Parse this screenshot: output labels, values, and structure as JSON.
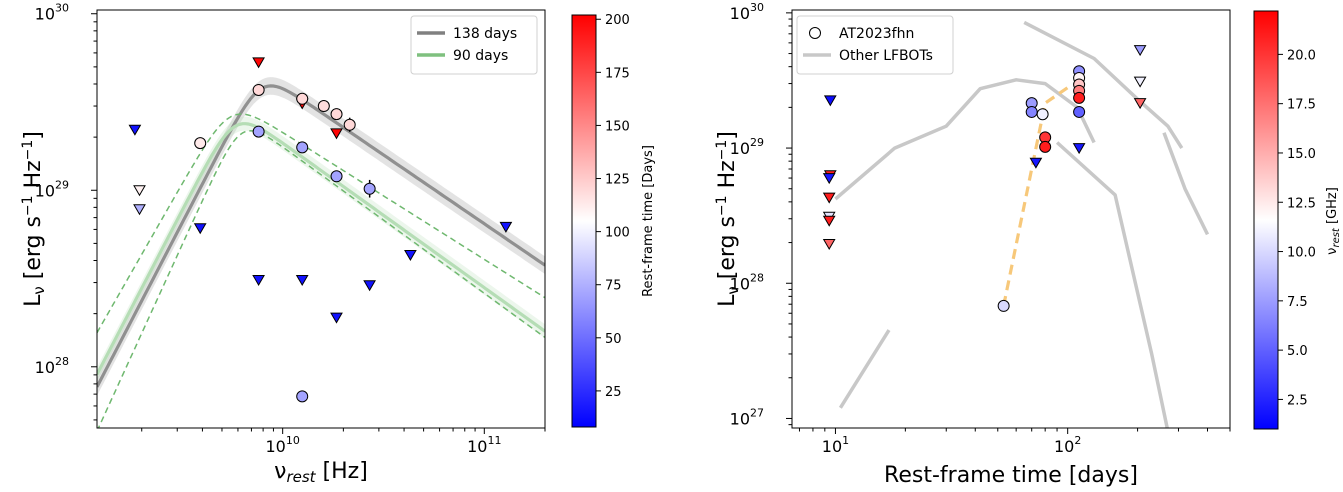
{
  "chart_data": [
    {
      "type": "scatter",
      "xscale": "log",
      "yscale": "log",
      "xlim": [
        1200000000.0,
        200000000000.0
      ],
      "ylim": [
        4.5e+27,
        1.05e+30
      ],
      "xlabel": "ν_rest [Hz]",
      "ylabel": "Lν [erg s⁻¹ Hz⁻¹]",
      "xticks": [
        {
          "value": 10000000000.0,
          "label": "10",
          "exp": "10"
        },
        {
          "value": 100000000000.0,
          "label": "10",
          "exp": "11"
        }
      ],
      "yticks": [
        {
          "value": 1e+28,
          "label": "10",
          "exp": "28"
        },
        {
          "value": 1e+29,
          "label": "10",
          "exp": "29"
        },
        {
          "value": 1e+30,
          "label": "10",
          "exp": "30"
        }
      ],
      "legend": {
        "position": "top-right",
        "entries": [
          {
            "label": "138 days",
            "color": "#808080"
          },
          {
            "label": "90 days",
            "color": "#7fc07f"
          }
        ]
      },
      "colorbar": {
        "label": "Rest-frame time [Days]",
        "range": [
          8,
          202
        ],
        "ticks": [
          25,
          50,
          75,
          100,
          125,
          150,
          175,
          200
        ],
        "tick_labels": [
          "25",
          "50",
          "75",
          "100",
          "125",
          "150",
          "175",
          "200"
        ]
      },
      "model_curves": [
        {
          "name": "138 days",
          "color": "#909090",
          "peak_nu": 7800000000.0,
          "peak_L": 3.75e+29,
          "low_index": 2.2,
          "high_index": -0.78,
          "band_dex": 0.05
        },
        {
          "name": "90 days",
          "color": "#b5ddb5",
          "peak_nu": 5800000000.0,
          "peak_L": 2.3e+29,
          "low_index": 2.2,
          "high_index": -0.82,
          "band_dex": 0.04
        },
        {
          "name": "90 days upper",
          "color": "#6fb86f",
          "dashed": true,
          "peak_nu": 5500000000.0,
          "peak_L": 2.6e+29,
          "low_index": 2.0,
          "high_index": -0.72
        },
        {
          "name": "90 days lower",
          "color": "#6fb86f",
          "dashed": true,
          "peak_nu": 6200000000.0,
          "peak_L": 2.08e+29,
          "low_index": 2.5,
          "high_index": -0.83
        }
      ],
      "detections": [
        {
          "x": 3900000000.0,
          "y": 1.85e+29,
          "c": 113
        },
        {
          "x": 7600000000.0,
          "y": 3.7e+29,
          "c": 120
        },
        {
          "x": 12500000000.0,
          "y": 3.3e+29,
          "c": 120
        },
        {
          "x": 16000000000.0,
          "y": 3e+29,
          "c": 118
        },
        {
          "x": 18500000000.0,
          "y": 2.7e+29,
          "c": 120
        },
        {
          "x": 21500000000.0,
          "y": 2.35e+29,
          "c": 120,
          "yerr": 0.04
        },
        {
          "x": 7600000000.0,
          "y": 2.15e+29,
          "c": 70
        },
        {
          "x": 12500000000.0,
          "y": 1.75e+29,
          "c": 70
        },
        {
          "x": 18500000000.0,
          "y": 1.2e+29,
          "c": 70,
          "yerr": 0.03
        },
        {
          "x": 27000000000.0,
          "y": 1.02e+29,
          "c": 70,
          "yerr": 0.05
        },
        {
          "x": 12500000000.0,
          "y": 6.8e+27,
          "c": 70
        }
      ],
      "upper_limits": [
        {
          "x": 1850000000.0,
          "y": 2.2e+29,
          "c": 15
        },
        {
          "x": 1950000000.0,
          "y": 1e+29,
          "c": 110
        },
        {
          "x": 1950000000.0,
          "y": 7.8e+28,
          "c": 75
        },
        {
          "x": 3900000000.0,
          "y": 6.1e+28,
          "c": 15
        },
        {
          "x": 7600000000.0,
          "y": 5.3e+29,
          "c": 200
        },
        {
          "x": 7600000000.0,
          "y": 3.1e+28,
          "c": 15
        },
        {
          "x": 12500000000.0,
          "y": 3.1e+28,
          "c": 15
        },
        {
          "x": 12500000000.0,
          "y": 3.1e+29,
          "c": 200
        },
        {
          "x": 18500000000.0,
          "y": 2.1e+29,
          "c": 200
        },
        {
          "x": 18500000000.0,
          "y": 1.9e+28,
          "c": 15
        },
        {
          "x": 27000000000.0,
          "y": 2.9e+28,
          "c": 15
        },
        {
          "x": 43000000000.0,
          "y": 4.3e+28,
          "c": 15
        },
        {
          "x": 128000000000.0,
          "y": 6.2e+28,
          "c": 15
        }
      ]
    },
    {
      "type": "scatter",
      "xscale": "log",
      "yscale": "log",
      "xlim": [
        6.5,
        500
      ],
      "ylim": [
        8.5e+26,
        1.05e+30
      ],
      "xlabel": "Rest-frame time [days]",
      "ylabel": "Lν [erg s⁻¹ Hz⁻¹]",
      "xticks": [
        {
          "value": 10,
          "label": "10",
          "exp": "1"
        },
        {
          "value": 100,
          "label": "10",
          "exp": "2"
        }
      ],
      "yticks": [
        {
          "value": 1e+27,
          "label": "10",
          "exp": "27"
        },
        {
          "value": 1e+28,
          "label": "10",
          "exp": "28"
        },
        {
          "value": 1e+29,
          "label": "10",
          "exp": "29"
        },
        {
          "value": 1e+30,
          "label": "10",
          "exp": "30"
        }
      ],
      "legend": {
        "position": "top-left",
        "entries": [
          {
            "label": "AT2023fhn",
            "marker": "circle"
          },
          {
            "label": "Other LFBOTs",
            "color": "#c8c8c8"
          }
        ]
      },
      "colorbar": {
        "label": "ν_rest [GHz]",
        "range": [
          1.0,
          22.2
        ],
        "ticks": [
          2.5,
          5.0,
          7.5,
          10.0,
          12.5,
          15.0,
          17.5,
          20.0
        ],
        "tick_labels": [
          "2.5",
          "5.0",
          "7.5",
          "10.0",
          "12.5",
          "15.0",
          "17.5",
          "20.0"
        ]
      },
      "lfbot_curves": [
        [
          [
            10,
            4.2e+28
          ],
          [
            18,
            1e+29
          ],
          [
            30,
            1.45e+29
          ],
          [
            42,
            2.75e+29
          ],
          [
            60,
            3.2e+29
          ],
          [
            80,
            3e+29
          ],
          [
            110,
            2e+29
          ],
          [
            130,
            1.1e+29
          ]
        ],
        [
          [
            10.5,
            1.2e+27
          ],
          [
            17,
            4.5e+27
          ]
        ],
        [
          [
            65,
            8.5e+29
          ],
          [
            130,
            4.6e+29
          ],
          [
            200,
            2.3e+29
          ],
          [
            270,
            1.45e+29
          ],
          [
            310,
            1e+29
          ]
        ],
        [
          [
            90,
            1.1e+29
          ],
          [
            160,
            4.5e+28
          ],
          [
            230,
            3e+27
          ],
          [
            280,
            6e+26
          ]
        ],
        [
          [
            260,
            1.3e+29
          ],
          [
            320,
            5e+28
          ],
          [
            400,
            2.3e+28
          ]
        ]
      ],
      "fhn_trend": [
        [
          53,
          6.8e+27
        ],
        [
          80,
          2.15e+29
        ],
        [
          100,
          2.8e+29
        ]
      ],
      "detections": [
        {
          "x": 53,
          "y": 6.8e+27,
          "c": 10
        },
        {
          "x": 70,
          "y": 2.15e+29,
          "c": 7.5
        },
        {
          "x": 70,
          "y": 1.85e+29,
          "c": 6.5
        },
        {
          "x": 78,
          "y": 1.78e+29,
          "c": 11
        },
        {
          "x": 80,
          "y": 1.2e+29,
          "c": 20
        },
        {
          "x": 80,
          "y": 1.02e+29,
          "c": 21
        },
        {
          "x": 112,
          "y": 3.7e+29,
          "c": 7
        },
        {
          "x": 112,
          "y": 3.3e+29,
          "c": 12
        },
        {
          "x": 112,
          "y": 2.95e+29,
          "c": 14
        },
        {
          "x": 112,
          "y": 2.65e+29,
          "c": 17
        },
        {
          "x": 112,
          "y": 2.35e+29,
          "c": 21
        },
        {
          "x": 112,
          "y": 1.85e+29,
          "c": 5
        }
      ],
      "upper_limits": [
        {
          "x": 9.5,
          "y": 2.25e+29,
          "c": 1.5
        },
        {
          "x": 9.5,
          "y": 6.3e+28,
          "c": 21
        },
        {
          "x": 9.4,
          "y": 6e+28,
          "c": 2
        },
        {
          "x": 9.4,
          "y": 4.3e+28,
          "c": 21
        },
        {
          "x": 9.4,
          "y": 3.1e+28,
          "c": 10.5
        },
        {
          "x": 9.4,
          "y": 2.9e+28,
          "c": 21
        },
        {
          "x": 9.4,
          "y": 1.95e+28,
          "c": 18
        },
        {
          "x": 73,
          "y": 7.8e+28,
          "c": 2
        },
        {
          "x": 112,
          "y": 1e+29,
          "c": 2
        },
        {
          "x": 205,
          "y": 5.3e+29,
          "c": 7.5
        },
        {
          "x": 205,
          "y": 3.1e+29,
          "c": 11
        },
        {
          "x": 205,
          "y": 2.15e+29,
          "c": 18
        }
      ]
    }
  ]
}
